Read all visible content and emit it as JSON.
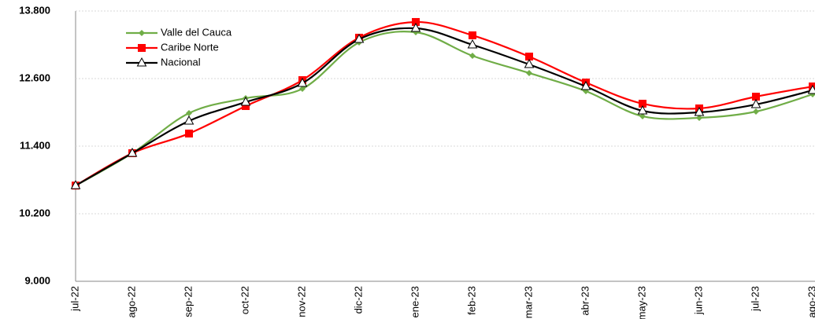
{
  "chart_data": {
    "type": "line",
    "categories": [
      "jul-22",
      "ago-22",
      "sep-22",
      "oct-22",
      "nov-22",
      "dic-22",
      "ene-23",
      "feb-23",
      "mar-23",
      "abr-23",
      "may-23",
      "jun-23",
      "jul-23",
      "ago-23"
    ],
    "series": [
      {
        "name": "Valle del Cauca",
        "color": "#70ad47",
        "marker": "diamond",
        "values": [
          10700,
          11275,
          11986,
          12251,
          12419,
          13242,
          13423,
          13005,
          12698,
          12377,
          11931,
          11903,
          12014,
          12321
        ]
      },
      {
        "name": "Caribe Norte",
        "color": "#ff0000",
        "marker": "square",
        "values": [
          10700,
          11275,
          11624,
          12112,
          12572,
          13326,
          13605,
          13368,
          12991,
          12530,
          12154,
          12070,
          12279,
          12460
        ]
      },
      {
        "name": "Nacional",
        "color": "#000000",
        "marker": "triangle",
        "values": [
          10700,
          11275,
          11847,
          12182,
          12517,
          13298,
          13493,
          13200,
          12851,
          12461,
          12028,
          12000,
          12140,
          12391
        ]
      }
    ],
    "ylim": [
      9000,
      13800
    ],
    "yticks": [
      {
        "value": 9000,
        "label": "9.000"
      },
      {
        "value": 10200,
        "label": "10.200"
      },
      {
        "value": 11400,
        "label": "11.400"
      },
      {
        "value": 12600,
        "label": "12.600"
      },
      {
        "value": 13800,
        "label": "13.800"
      }
    ],
    "grid": true,
    "legend": "top-left"
  }
}
